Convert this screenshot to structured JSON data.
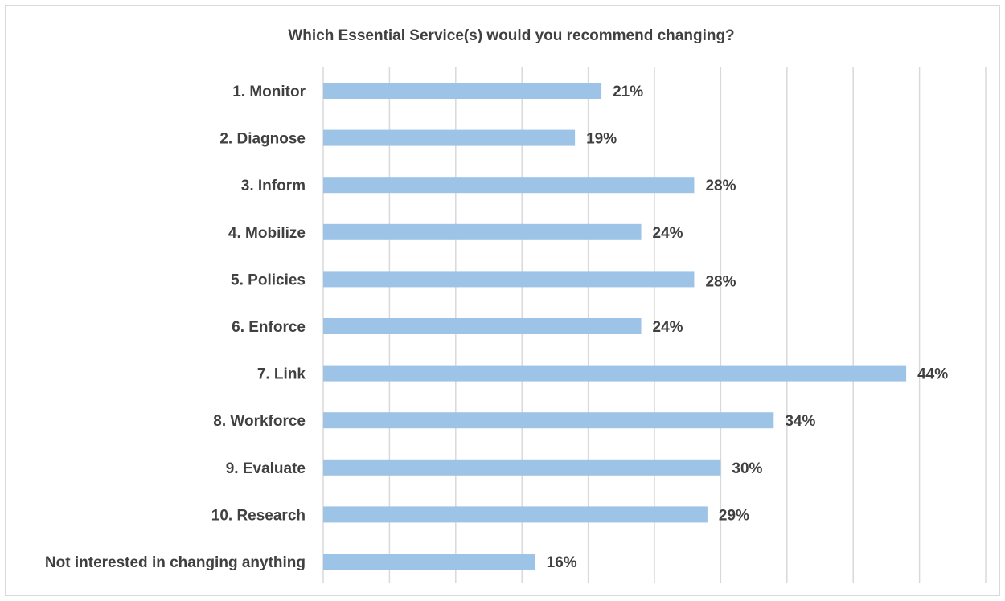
{
  "chart_data": {
    "type": "bar",
    "orientation": "horizontal",
    "title": "Which Essential Service(s) would you recommend changing?",
    "categories": [
      "1. Monitor",
      "2. Diagnose",
      "3. Inform",
      "4. Mobilize",
      "5. Policies",
      "6. Enforce",
      "7. Link",
      "8. Workforce",
      "9. Evaluate",
      "10. Research",
      "Not interested in changing anything"
    ],
    "values": [
      21,
      19,
      28,
      24,
      28,
      24,
      44,
      34,
      30,
      29,
      16
    ],
    "value_labels": [
      "21%",
      "19%",
      "28%",
      "24%",
      "28%",
      "24%",
      "44%",
      "34%",
      "30%",
      "29%",
      "16%"
    ],
    "unit": "%",
    "xlim": [
      0,
      50
    ],
    "gridlines": true,
    "gridline_step": 5,
    "legend": "none",
    "bar_color": "#9dc3e6",
    "text_color": "#404040",
    "grid_color": "#d9d9d9"
  }
}
